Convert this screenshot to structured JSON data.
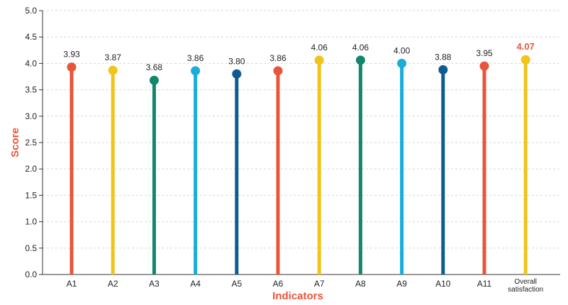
{
  "chart_data": {
    "type": "lollipop",
    "xlabel": "Indicators",
    "ylabel": "Score",
    "ylim": [
      0,
      5
    ],
    "yticks": [
      "0.0",
      "0.5",
      "1.0",
      "1.5",
      "2.0",
      "2.5",
      "3.0",
      "3.5",
      "4.0",
      "4.5",
      "5.0"
    ],
    "grid": "horizontal dashed",
    "categories": [
      "A1",
      "A2",
      "A3",
      "A4",
      "A5",
      "A6",
      "A7",
      "A8",
      "A9",
      "A10",
      "A11",
      "Overall satisfaction"
    ],
    "values": [
      3.93,
      3.87,
      3.68,
      3.86,
      3.8,
      3.86,
      4.06,
      4.06,
      4.0,
      3.88,
      3.95,
      4.07
    ],
    "value_labels": [
      "3.93",
      "3.87",
      "3.68",
      "3.86",
      "3.80",
      "3.86",
      "4.06",
      "4.06",
      "4.00",
      "3.88",
      "3.95",
      "4.07"
    ],
    "colors": [
      "#e8553a",
      "#f0c419",
      "#13866c",
      "#19aed9",
      "#0d5c8f",
      "#e8553a",
      "#f0c419",
      "#13866c",
      "#19aed9",
      "#0d5c8f",
      "#e8553a",
      "#f0c419"
    ],
    "label_colors": {
      "normal": "#222222",
      "highlight": "#e8553a",
      "axis_title": "#e8553a"
    },
    "highlight_index": 11
  }
}
